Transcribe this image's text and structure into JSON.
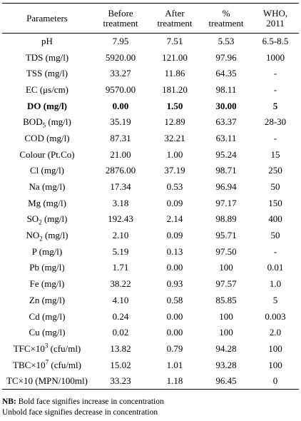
{
  "table": {
    "headers": [
      [
        "Parameters"
      ],
      [
        "Before",
        "treatment"
      ],
      [
        "After",
        "treatment"
      ],
      [
        "%",
        "treatment"
      ],
      [
        "WHO,",
        "2011"
      ]
    ],
    "rows": [
      {
        "param": "pH",
        "before": "7.95",
        "after": "7.51",
        "pct": "5.53",
        "who": "6.5-8.5",
        "bold": false
      },
      {
        "param": "TDS (mg/l)",
        "before": "5920.00",
        "after": "121.00",
        "pct": "97.96",
        "who": "1000",
        "bold": false
      },
      {
        "param": "TSS (mg/l)",
        "before": "33.27",
        "after": "11.86",
        "pct": "64.35",
        "who": "-",
        "bold": false
      },
      {
        "param": "EC (μs/cm)",
        "before": "9570.00",
        "after": "181.20",
        "pct": "98.11",
        "who": "-",
        "bold": false
      },
      {
        "param": "DO (mg/l)",
        "before": "0.00",
        "after": "1.50",
        "pct": "30.00",
        "who": "5",
        "bold": true
      },
      {
        "param": "BOD",
        "sub": "5",
        "param_after": " (mg/l)",
        "before": "35.19",
        "after": "12.89",
        "pct": "63.37",
        "who": "28-30",
        "bold": false
      },
      {
        "param": "COD (mg/l)",
        "before": "87.31",
        "after": "32.21",
        "pct": "63.11",
        "who": "-",
        "bold": false
      },
      {
        "param": "Colour (Pt.Co)",
        "before": "21.00",
        "after": "1.00",
        "pct": "95.24",
        "who": "15",
        "bold": false
      },
      {
        "param": "Cl (mg/l)",
        "before": "2876.00",
        "after": "37.19",
        "pct": "98.71",
        "who": "250",
        "bold": false
      },
      {
        "param": "Na (mg/l)",
        "before": "17.34",
        "after": "0.53",
        "pct": "96.94",
        "who": "50",
        "bold": false
      },
      {
        "param": "Mg (mg/l)",
        "before": "3.18",
        "after": "0.09",
        "pct": "97.17",
        "who": "150",
        "bold": false
      },
      {
        "param": "SO",
        "sub": "2",
        "param_after": " (mg/l)",
        "before": "192.43",
        "after": "2.14",
        "pct": "98.89",
        "who": "400",
        "bold": false
      },
      {
        "param": "NO",
        "sub": "2",
        "param_after": " (mg/l)",
        "before": "2.10",
        "after": "0.09",
        "pct": "95.71",
        "who": "50",
        "bold": false
      },
      {
        "param": "P (mg/l)",
        "before": "5.19",
        "after": "0.13",
        "pct": "97.50",
        "who": "-",
        "bold": false
      },
      {
        "param": "Pb (mg/l)",
        "before": "1.71",
        "after": "0.00",
        "pct": "100",
        "who": "0.01",
        "bold": false
      },
      {
        "param": "Fe (mg/l)",
        "before": "38.22",
        "after": "0.93",
        "pct": "97.57",
        "who": "1.0",
        "bold": false
      },
      {
        "param": "Zn (mg/l)",
        "before": "4.10",
        "after": "0.58",
        "pct": "85.85",
        "who": "5",
        "bold": false
      },
      {
        "param": "Cd (mg/l)",
        "before": "0.24",
        "after": "0.00",
        "pct": "100",
        "who": "0.003",
        "bold": false
      },
      {
        "param": "Cu (mg/l)",
        "before": "0.02",
        "after": "0.00",
        "pct": "100",
        "who": "2.0",
        "bold": false
      },
      {
        "param": "TFC×10",
        "sup": "3",
        "param_after": " (cfu/ml)",
        "before": "13.82",
        "after": "0.79",
        "pct": "94.28",
        "who": "100",
        "bold": false
      },
      {
        "param": "TBC×10",
        "sup": "7",
        "param_after": " (cfu/ml)",
        "before": "15.02",
        "after": "1.01",
        "pct": "93.28",
        "who": "100",
        "bold": false
      },
      {
        "param": "TC×10 (MPN/100ml)",
        "before": "33.23",
        "after": "1.18",
        "pct": "96.45",
        "who": "0",
        "bold": false
      }
    ]
  },
  "notes": {
    "nb_label": "NB:",
    "line1": " Bold face signifies increase in concentration",
    "line2": "Unbold face signifies decrease in concentration"
  }
}
